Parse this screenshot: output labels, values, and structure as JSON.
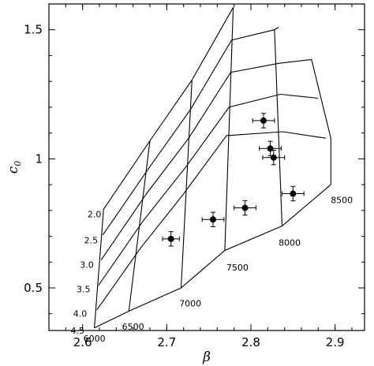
{
  "chart_data": {
    "type": "scatter",
    "xlabel": "β",
    "ylabel_main": "c",
    "ylabel_sub": "0",
    "xlim": [
      2.56,
      2.935
    ],
    "ylim": [
      0.335,
      1.6
    ],
    "xticks": [
      2.6,
      2.7,
      2.8,
      2.9
    ],
    "xtick_labels": [
      "2.6",
      "2.7",
      "2.8",
      "2.9"
    ],
    "yticks": [
      0.5,
      1.0,
      1.5
    ],
    "ytick_labels": [
      "0.5",
      "1",
      "1.5"
    ],
    "points": [
      {
        "x": 2.705,
        "y": 0.69,
        "xerr": 0.01,
        "yerr": 0.028
      },
      {
        "x": 2.755,
        "y": 0.765,
        "xerr": 0.013,
        "yerr": 0.028
      },
      {
        "x": 2.793,
        "y": 0.81,
        "xerr": 0.013,
        "yerr": 0.028
      },
      {
        "x": 2.815,
        "y": 1.148,
        "xerr": 0.013,
        "yerr": 0.028
      },
      {
        "x": 2.823,
        "y": 1.04,
        "xerr": 0.013,
        "yerr": 0.028
      },
      {
        "x": 2.827,
        "y": 1.005,
        "xerr": 0.013,
        "yerr": 0.028
      },
      {
        "x": 2.85,
        "y": 0.865,
        "xerr": 0.013,
        "yerr": 0.028
      }
    ],
    "grid": {
      "log_g_lines": [
        {
          "label": "2.0",
          "points": [
            [
              2.625,
              0.805
            ],
            [
              2.68,
              1.07
            ],
            [
              2.73,
              1.305
            ],
            [
              2.779,
              1.587
            ]
          ]
        },
        {
          "label": "2.5",
          "points": [
            [
              2.624,
              0.705
            ],
            [
              2.679,
              0.965
            ],
            [
              2.728,
              1.19
            ],
            [
              2.777,
              1.46
            ],
            [
              2.828,
              1.5
            ],
            [
              2.833,
              1.51
            ]
          ]
        },
        {
          "label": "3.0",
          "points": [
            [
              2.622,
              0.608
            ],
            [
              2.676,
              0.865
            ],
            [
              2.726,
              1.08
            ],
            [
              2.776,
              1.335
            ],
            [
              2.833,
              1.37
            ],
            [
              2.872,
              1.385
            ]
          ]
        },
        {
          "label": "3.5",
          "points": [
            [
              2.619,
              0.51
            ],
            [
              2.672,
              0.76
            ],
            [
              2.723,
              0.97
            ],
            [
              2.774,
              1.2
            ],
            [
              2.835,
              1.25
            ],
            [
              2.88,
              1.235
            ]
          ]
        },
        {
          "label": "4.0",
          "points": [
            [
              2.617,
              0.415
            ],
            [
              2.669,
              0.655
            ],
            [
              2.719,
              0.86
            ],
            [
              2.771,
              1.09
            ],
            [
              2.838,
              1.105
            ],
            [
              2.889,
              1.08
            ]
          ]
        },
        {
          "label": "4.5",
          "points": [
            [
              2.614,
              0.345
            ],
            [
              2.655,
              0.41
            ],
            [
              2.717,
              0.5
            ],
            [
              2.769,
              0.645
            ],
            [
              2.837,
              0.74
            ],
            [
              2.895,
              0.9
            ]
          ]
        }
      ],
      "teff_lines": [
        {
          "label": "6000",
          "points": [
            [
              2.625,
              0.805
            ],
            [
              2.614,
              0.345
            ]
          ]
        },
        {
          "label": "6500",
          "points": [
            [
              2.68,
              1.07
            ],
            [
              2.655,
              0.41
            ]
          ]
        },
        {
          "label": "7000",
          "points": [
            [
              2.73,
              1.305
            ],
            [
              2.717,
              0.5
            ]
          ]
        },
        {
          "label": "7500",
          "points": [
            [
              2.779,
              1.587
            ],
            [
              2.769,
              0.645
            ]
          ]
        },
        {
          "label": "8000",
          "points": [
            [
              2.828,
              1.5
            ],
            [
              2.837,
              0.74
            ]
          ]
        },
        {
          "label": "8500",
          "points": [
            [
              2.872,
              1.385
            ],
            [
              2.895,
              1.08
            ],
            [
              2.895,
              0.9
            ]
          ]
        }
      ],
      "log_g_label_positions": [
        {
          "label": "2.0",
          "x": 2.614,
          "y": 0.785
        },
        {
          "label": "2.5",
          "x": 2.61,
          "y": 0.685
        },
        {
          "label": "3.0",
          "x": 2.605,
          "y": 0.59
        },
        {
          "label": "3.5",
          "x": 2.601,
          "y": 0.495
        },
        {
          "label": "4.0",
          "x": 2.597,
          "y": 0.4
        },
        {
          "label": "4.5",
          "x": 2.594,
          "y": 0.335
        }
      ],
      "teff_label_positions": [
        {
          "label": "6000",
          "x": 2.614,
          "y": 0.305
        },
        {
          "label": "6500",
          "x": 2.66,
          "y": 0.35
        },
        {
          "label": "7000",
          "x": 2.728,
          "y": 0.44
        },
        {
          "label": "7500",
          "x": 2.784,
          "y": 0.58
        },
        {
          "label": "8000",
          "x": 2.846,
          "y": 0.675
        },
        {
          "label": "8500",
          "x": 2.908,
          "y": 0.84
        }
      ]
    }
  }
}
